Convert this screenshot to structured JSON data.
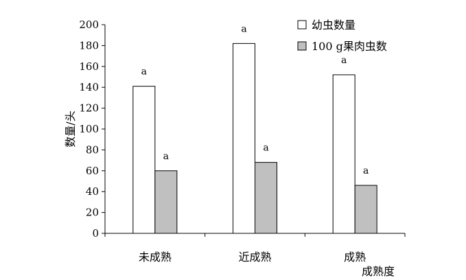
{
  "chart_data": {
    "type": "bar",
    "title": "",
    "xlabel": "成熟度",
    "ylabel": "数量/头",
    "ylim": [
      0,
      200
    ],
    "yticks": [
      0,
      20,
      40,
      60,
      80,
      100,
      120,
      140,
      160,
      180,
      200
    ],
    "categories": [
      "未成熟",
      "近成熟",
      "成熟"
    ],
    "series": [
      {
        "name": "幼虫数量",
        "values": [
          141,
          182,
          152
        ],
        "labels": [
          "a",
          "a",
          "a"
        ],
        "color": "#ffffff"
      },
      {
        "name": "100 g果肉虫数",
        "values": [
          60,
          68,
          46
        ],
        "labels": [
          "a",
          "a",
          "a"
        ],
        "color": "#c0c0c0"
      }
    ],
    "grid": false,
    "legend_position": "top-right"
  }
}
